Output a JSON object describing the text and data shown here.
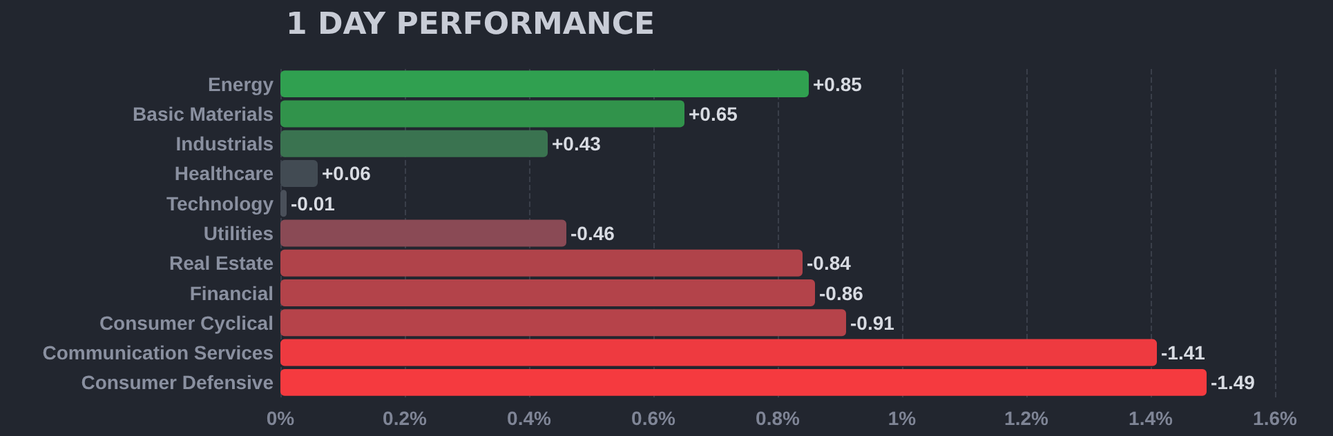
{
  "chart_data": {
    "type": "bar",
    "orientation": "horizontal",
    "title": "1 DAY PERFORMANCE",
    "categories": [
      "Energy",
      "Basic Materials",
      "Industrials",
      "Healthcare",
      "Technology",
      "Utilities",
      "Real Estate",
      "Financial",
      "Consumer Cyclical",
      "Communication Services",
      "Consumer Defensive"
    ],
    "values": [
      0.85,
      0.65,
      0.43,
      0.06,
      0.01,
      0.46,
      0.84,
      0.86,
      0.91,
      1.41,
      1.49
    ],
    "annotations": [
      {
        "text": "+0.85",
        "x": 0.85,
        "y": "Energy"
      },
      {
        "text": "+0.65",
        "x": 0.65,
        "y": "Basic Materials"
      },
      {
        "text": "+0.43",
        "x": 0.43,
        "y": "Industrials"
      },
      {
        "text": "+0.06",
        "x": 0.06,
        "y": "Healthcare"
      },
      {
        "text": "-0.01",
        "x": 0.01,
        "y": "Technology"
      },
      {
        "text": "-0.46",
        "x": 0.46,
        "y": "Utilities"
      },
      {
        "text": "-0.84",
        "x": 0.84,
        "y": "Real Estate"
      },
      {
        "text": "-0.86",
        "x": 0.86,
        "y": "Financial"
      },
      {
        "text": "-0.91",
        "x": 0.91,
        "y": "Consumer Cyclical"
      },
      {
        "text": "-1.41",
        "x": 1.41,
        "y": "Communication Services"
      },
      {
        "text": "-1.49",
        "x": 1.49,
        "y": "Consumer Defensive"
      }
    ],
    "colors": [
      "#30a050",
      "#31934b",
      "#3a7350",
      "#424b53",
      "#4a505a",
      "#8a4a55",
      "#b0434a",
      "#b3434a",
      "#b6434a",
      "#ee3a40",
      "#f53a3f"
    ],
    "xlim": [
      0,
      1.6
    ],
    "xticks": [
      {
        "value": 0,
        "label": "0%"
      },
      {
        "value": 0.2,
        "label": "0.2%"
      },
      {
        "value": 0.4,
        "label": "0.4%"
      },
      {
        "value": 0.6,
        "label": "0.6%"
      },
      {
        "value": 0.8,
        "label": "0.8%"
      },
      {
        "value": 1,
        "label": "1%"
      },
      {
        "value": 1.2,
        "label": "1.2%"
      },
      {
        "value": 1.4,
        "label": "1.4%"
      },
      {
        "value": 1.6,
        "label": "1.6%"
      }
    ],
    "grid": "x"
  }
}
